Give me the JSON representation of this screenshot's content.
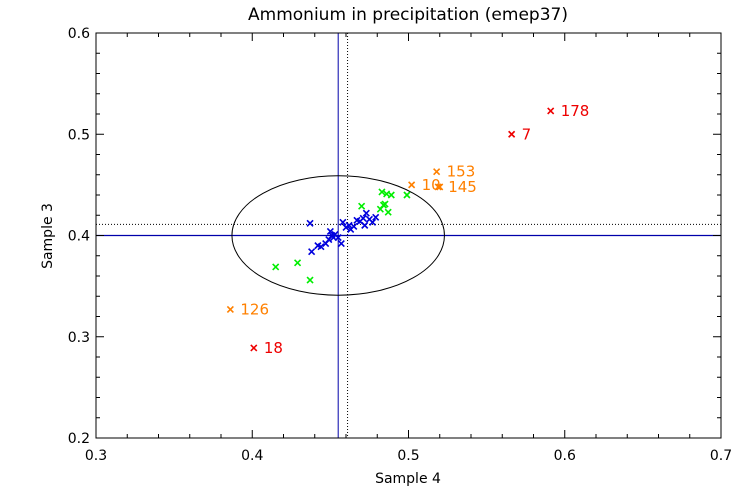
{
  "chart_data": {
    "type": "scatter",
    "title": "Ammonium in precipitation (emep37)",
    "xlabel": "Sample 4",
    "ylabel": "Sample 3",
    "xlim": [
      0.3,
      0.7
    ],
    "ylim": [
      0.2,
      0.6
    ],
    "xticks": [
      "0.3",
      "0.4",
      "0.5",
      "0.6",
      "0.7"
    ],
    "yticks": [
      "0.2",
      "0.3",
      "0.4",
      "0.5",
      "0.6"
    ],
    "grid": false,
    "colors": {
      "blue": "#0000dd",
      "green": "#00ee00",
      "orange": "#ff8000",
      "red": "#ee0000",
      "refline": "#0000aa",
      "black": "#000000"
    },
    "reference": {
      "x_solid": 0.455,
      "x_dotted": 0.461,
      "y_solid": 0.4,
      "y_dotted": 0.411
    },
    "ellipse": {
      "cx": 0.455,
      "cy": 0.4,
      "rx": 0.068,
      "ry": 0.059
    },
    "series": [
      {
        "name": "blue",
        "color": "#0000dd",
        "points": [
          [
            0.437,
            0.412
          ],
          [
            0.438,
            0.384
          ],
          [
            0.442,
            0.39
          ],
          [
            0.444,
            0.389
          ],
          [
            0.447,
            0.392
          ],
          [
            0.449,
            0.396
          ],
          [
            0.45,
            0.404
          ],
          [
            0.451,
            0.4
          ],
          [
            0.452,
            0.398
          ],
          [
            0.453,
            0.401
          ],
          [
            0.455,
            0.398
          ],
          [
            0.457,
            0.392
          ],
          [
            0.458,
            0.413
          ],
          [
            0.46,
            0.408
          ],
          [
            0.462,
            0.41
          ],
          [
            0.463,
            0.406
          ],
          [
            0.465,
            0.409
          ],
          [
            0.467,
            0.415
          ],
          [
            0.469,
            0.414
          ],
          [
            0.471,
            0.417
          ],
          [
            0.472,
            0.41
          ],
          [
            0.473,
            0.422
          ],
          [
            0.475,
            0.416
          ],
          [
            0.477,
            0.413
          ],
          [
            0.479,
            0.418
          ]
        ]
      },
      {
        "name": "green",
        "color": "#00ee00",
        "points": [
          [
            0.415,
            0.369
          ],
          [
            0.429,
            0.373
          ],
          [
            0.437,
            0.356
          ],
          [
            0.47,
            0.429
          ],
          [
            0.482,
            0.426
          ],
          [
            0.483,
            0.443
          ],
          [
            0.484,
            0.43
          ],
          [
            0.485,
            0.431
          ],
          [
            0.486,
            0.441
          ],
          [
            0.487,
            0.423
          ],
          [
            0.489,
            0.44
          ],
          [
            0.499,
            0.44
          ]
        ]
      },
      {
        "name": "orange",
        "color": "#ff8000",
        "points": [
          {
            "x": 0.386,
            "y": 0.327,
            "label": "126"
          },
          {
            "x": 0.502,
            "y": 0.45,
            "label": "10"
          },
          {
            "x": 0.518,
            "y": 0.463,
            "label": "153"
          },
          {
            "x": 0.519,
            "y": 0.448,
            "label": "145"
          },
          {
            "x": 0.52,
            "y": 0.448,
            "label": ""
          }
        ]
      },
      {
        "name": "red",
        "color": "#ee0000",
        "points": [
          {
            "x": 0.401,
            "y": 0.289,
            "label": "18"
          },
          {
            "x": 0.566,
            "y": 0.5,
            "label": "7"
          },
          {
            "x": 0.591,
            "y": 0.523,
            "label": "178"
          }
        ]
      }
    ]
  }
}
